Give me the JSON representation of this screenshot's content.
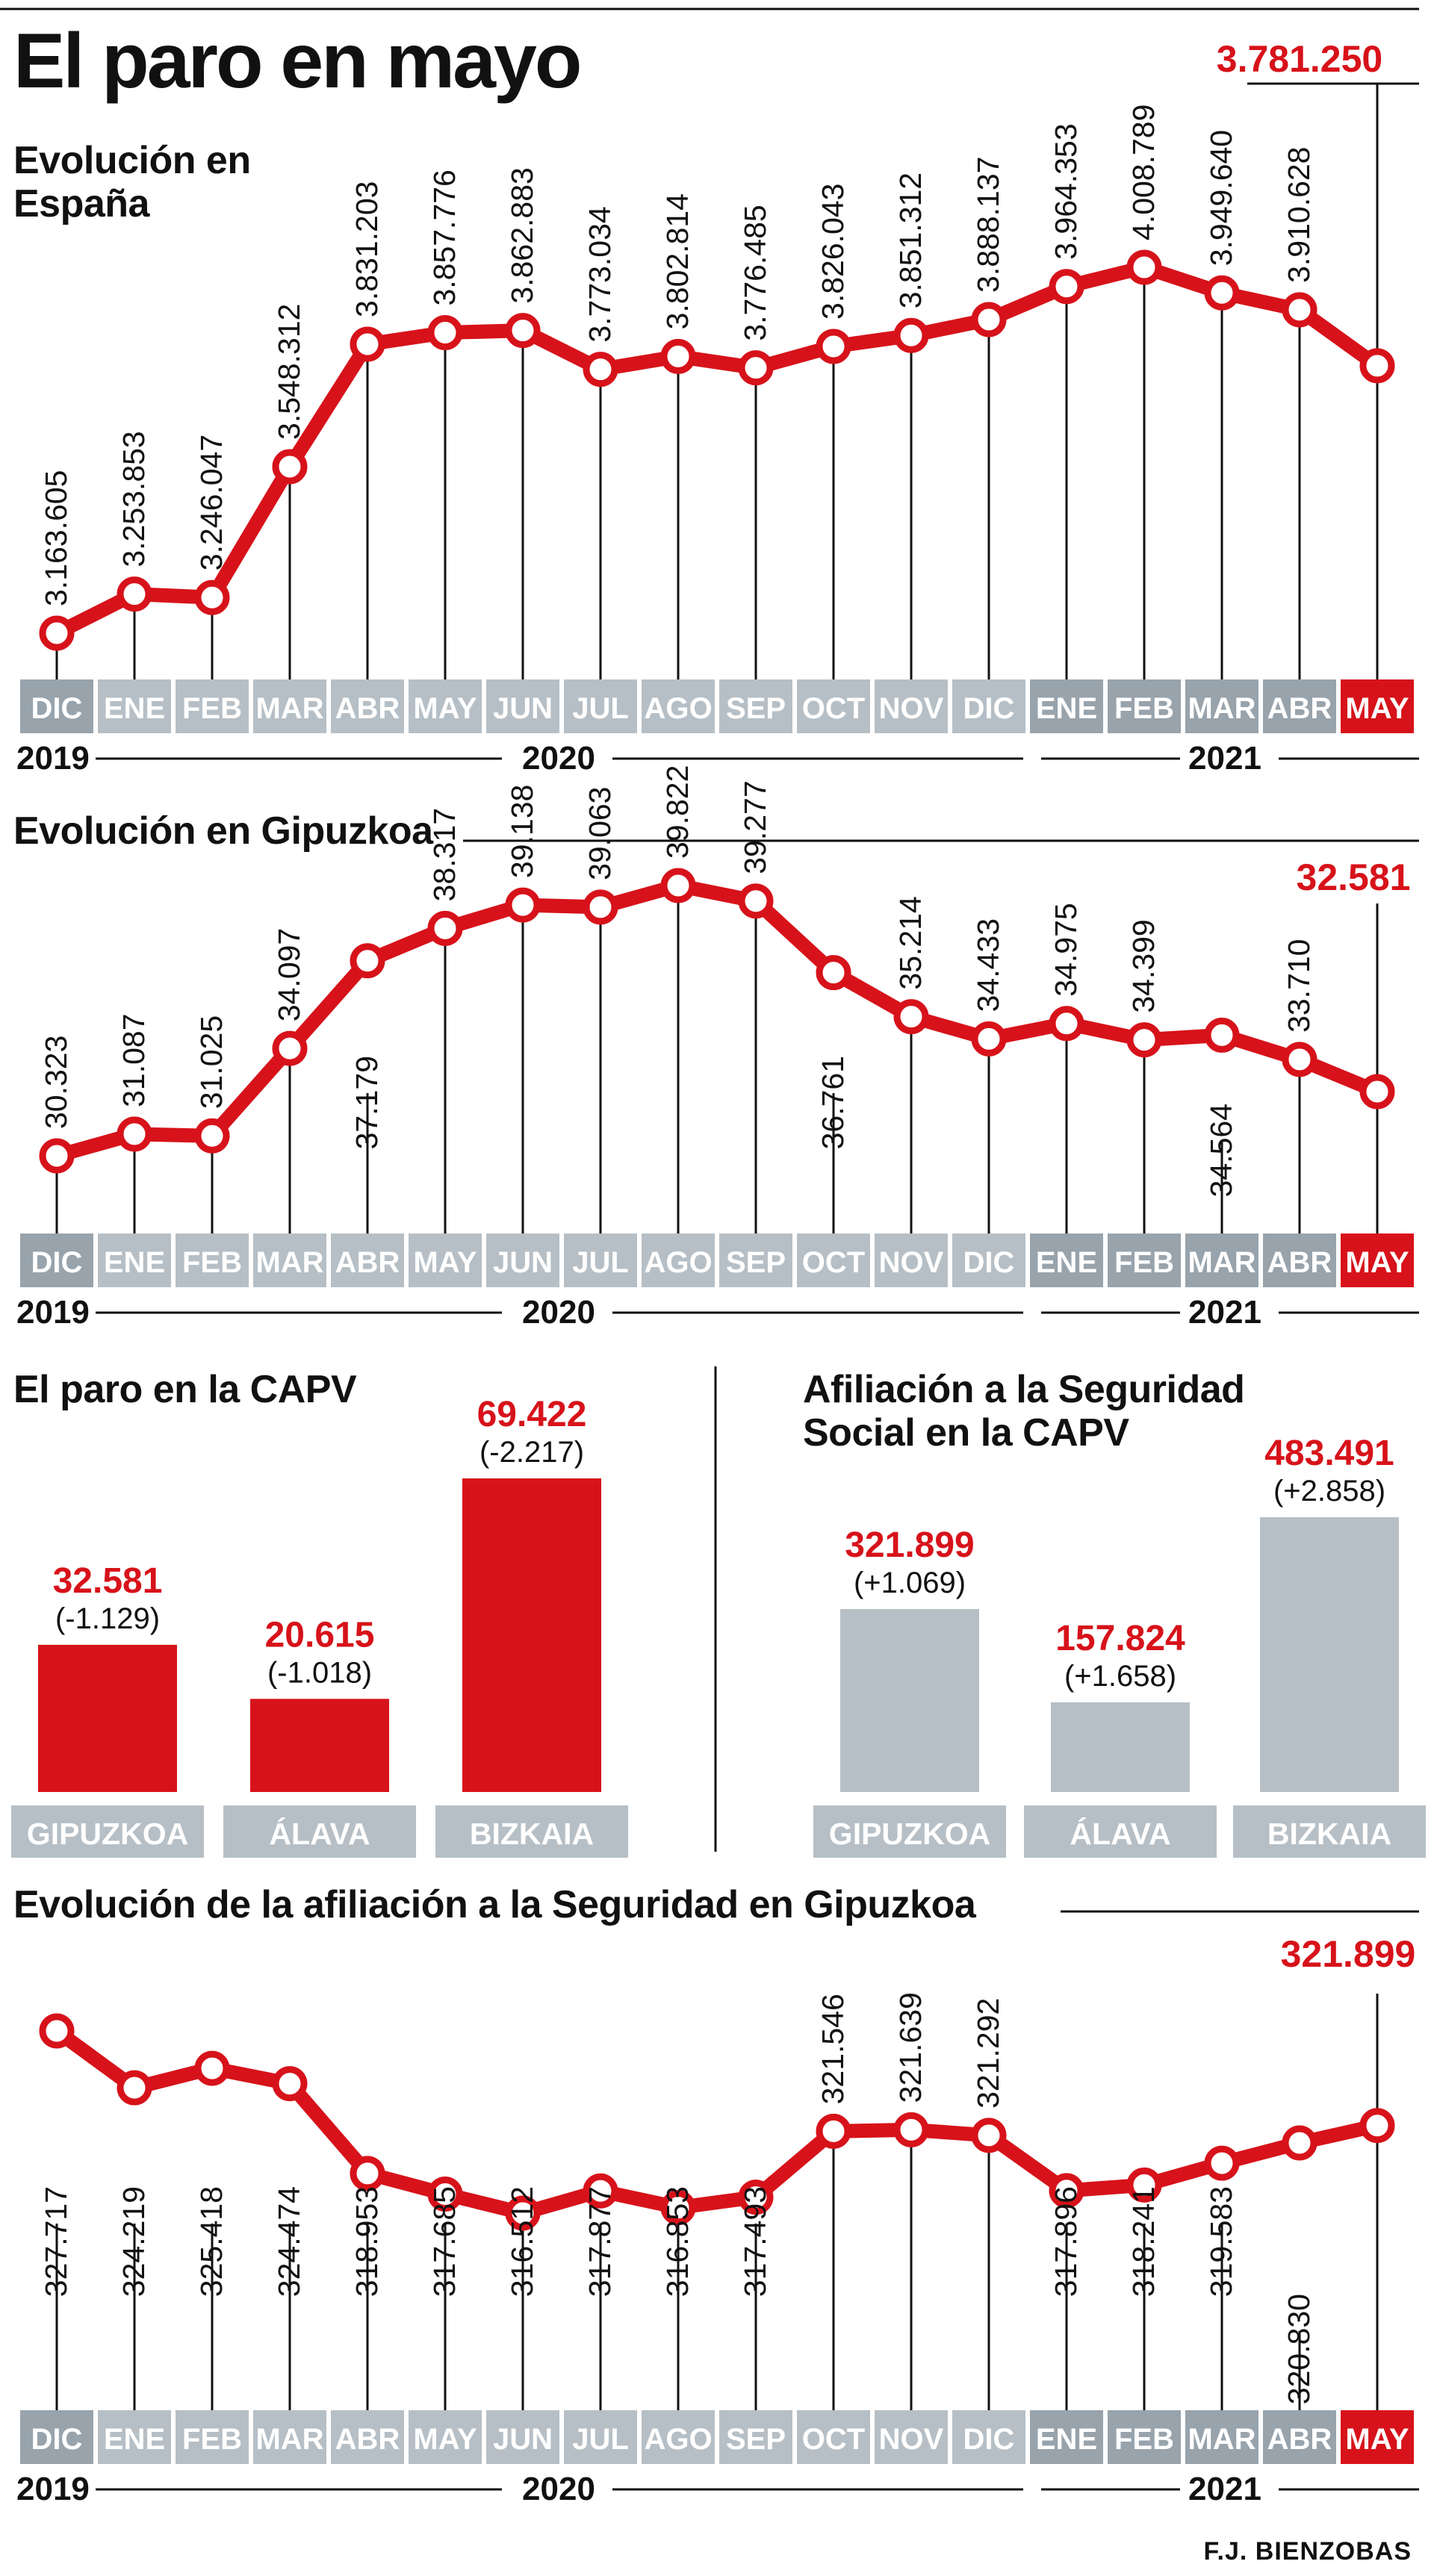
{
  "title": "El paro en mayo",
  "credit": "F.J. BIENZOBAS",
  "colors": {
    "accent": "#d7121a",
    "grey": "#b6bfc6",
    "dark": "#111111",
    "light_tab": "#b6bfc6",
    "dark_tab": "#98a3ac"
  },
  "chart_data": [
    {
      "type": "line",
      "title": "Evolución en España",
      "categories": [
        "DIC",
        "ENE",
        "FEB",
        "MAR",
        "ABR",
        "MAY",
        "JUN",
        "JUL",
        "AGO",
        "SEP",
        "OCT",
        "NOV",
        "DIC",
        "ENE",
        "FEB",
        "MAR",
        "ABR",
        "MAY"
      ],
      "values": [
        3163605,
        3253853,
        3246047,
        3548312,
        3831203,
        3857776,
        3862883,
        3773034,
        3802814,
        3776485,
        3826043,
        3851312,
        3888137,
        3964353,
        4008789,
        3949640,
        3910628,
        3781250
      ],
      "labels": [
        "3.163.605",
        "3.253.853",
        "3.246.047",
        "3.548.312",
        "3.831.203",
        "3.857.776",
        "3.862.883",
        "3.773.034",
        "3.802.814",
        "3.776.485",
        "3.826.043",
        "3.851.312",
        "3.888.137",
        "3.964.353",
        "4.008.789",
        "3.949.640",
        "3.910.628",
        "3.781.250"
      ],
      "years": [
        {
          "label": "2019"
        },
        {
          "label": "2020"
        },
        {
          "label": "2021"
        }
      ],
      "ylim": [
        3163605,
        4008789
      ]
    },
    {
      "type": "line",
      "title": "Evolución en Gipuzkoa",
      "categories": [
        "DIC",
        "ENE",
        "FEB",
        "MAR",
        "ABR",
        "MAY",
        "JUN",
        "JUL",
        "AGO",
        "SEP",
        "OCT",
        "NOV",
        "DIC",
        "ENE",
        "FEB",
        "MAR",
        "ABR",
        "MAY"
      ],
      "values": [
        30323,
        31087,
        31025,
        34097,
        37179,
        38317,
        39138,
        39063,
        39822,
        39277,
        36761,
        35214,
        34433,
        34975,
        34399,
        34564,
        33710,
        32581
      ],
      "labels": [
        "30.323",
        "31.087",
        "31.025",
        "34.097",
        "37.179",
        "38.317",
        "39.138",
        "39.063",
        "39.822",
        "39.277",
        "36.761",
        "35.214",
        "34.433",
        "34.975",
        "34.399",
        "34.564",
        "33.710",
        "32.581"
      ],
      "years": [
        {
          "label": "2019"
        },
        {
          "label": "2020"
        },
        {
          "label": "2021"
        }
      ],
      "ylim": [
        30323,
        39822
      ]
    },
    {
      "type": "bar",
      "title": "El paro en la CAPV",
      "categories": [
        "GIPUZKOA",
        "ÁLAVA",
        "BIZKAIA"
      ],
      "values": [
        32581,
        20615,
        69422
      ],
      "value_labels": [
        "32.581",
        "20.615",
        "69.422"
      ],
      "change_labels": [
        "(-1.129)",
        "(-1.018)",
        "(-2.217)"
      ]
    },
    {
      "type": "bar",
      "title_lines": [
        "Afiliación a la Seguridad",
        "Social en la CAPV"
      ],
      "categories": [
        "GIPUZKOA",
        "ÁLAVA",
        "BIZKAIA"
      ],
      "values": [
        321899,
        157824,
        483491
      ],
      "value_labels": [
        "321.899",
        "157.824",
        "483.491"
      ],
      "change_labels": [
        "(+1.069)",
        "(+1.658)",
        "(+2.858)"
      ]
    },
    {
      "type": "line",
      "title": "Evolución de la afiliación a la Seguridad en Gipuzkoa",
      "categories": [
        "DIC",
        "ENE",
        "FEB",
        "MAR",
        "ABR",
        "MAY",
        "JUN",
        "JUL",
        "AGO",
        "SEP",
        "OCT",
        "NOV",
        "DIC",
        "ENE",
        "FEB",
        "MAR",
        "ABR",
        "MAY"
      ],
      "values": [
        327717,
        324219,
        325418,
        324474,
        318953,
        317685,
        316512,
        317877,
        316853,
        317493,
        321546,
        321639,
        321292,
        317896,
        318241,
        319583,
        320830,
        321899
      ],
      "labels": [
        "327.717",
        "324.219",
        "325.418",
        "324.474",
        "318.953",
        "317.685",
        "316.512",
        "317.877",
        "316.853",
        "317.493",
        "321.546",
        "321.639",
        "321.292",
        "317.896",
        "318.241",
        "319.583",
        "320.830",
        "321.899"
      ],
      "years": [
        {
          "label": "2019"
        },
        {
          "label": "2020"
        },
        {
          "label": "2021"
        }
      ],
      "ylim": [
        316512,
        327717
      ]
    }
  ]
}
